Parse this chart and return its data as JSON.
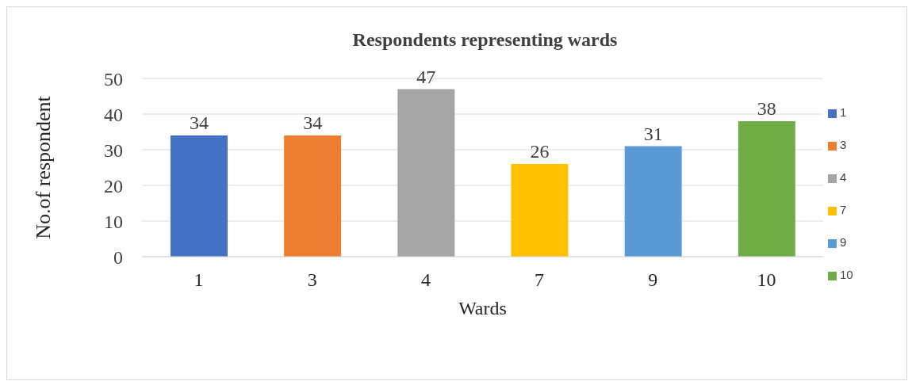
{
  "chart_data": {
    "type": "bar",
    "title": "Respondents representing wards",
    "xlabel": "Wards",
    "ylabel": "No.of respondent",
    "categories": [
      "1",
      "3",
      "4",
      "7",
      "9",
      "10"
    ],
    "series": [
      {
        "name": "1",
        "color": "#4472c4",
        "values": [
          34,
          null,
          null,
          null,
          null,
          null
        ]
      },
      {
        "name": "3",
        "color": "#ed7d31",
        "values": [
          null,
          34,
          null,
          null,
          null,
          null
        ]
      },
      {
        "name": "4",
        "color": "#a5a5a5",
        "values": [
          null,
          null,
          47,
          null,
          null,
          null
        ]
      },
      {
        "name": "7",
        "color": "#ffc000",
        "values": [
          null,
          null,
          null,
          26,
          null,
          null
        ]
      },
      {
        "name": "9",
        "color": "#5b9bd5",
        "values": [
          null,
          null,
          null,
          null,
          31,
          null
        ]
      },
      {
        "name": "10",
        "color": "#70ad47",
        "values": [
          null,
          null,
          null,
          null,
          null,
          38
        ]
      }
    ],
    "ylim": [
      0,
      50
    ],
    "yticks": [
      0,
      10,
      20,
      30,
      40,
      50
    ],
    "grid": "y",
    "data_labels": true,
    "legend": "right"
  }
}
